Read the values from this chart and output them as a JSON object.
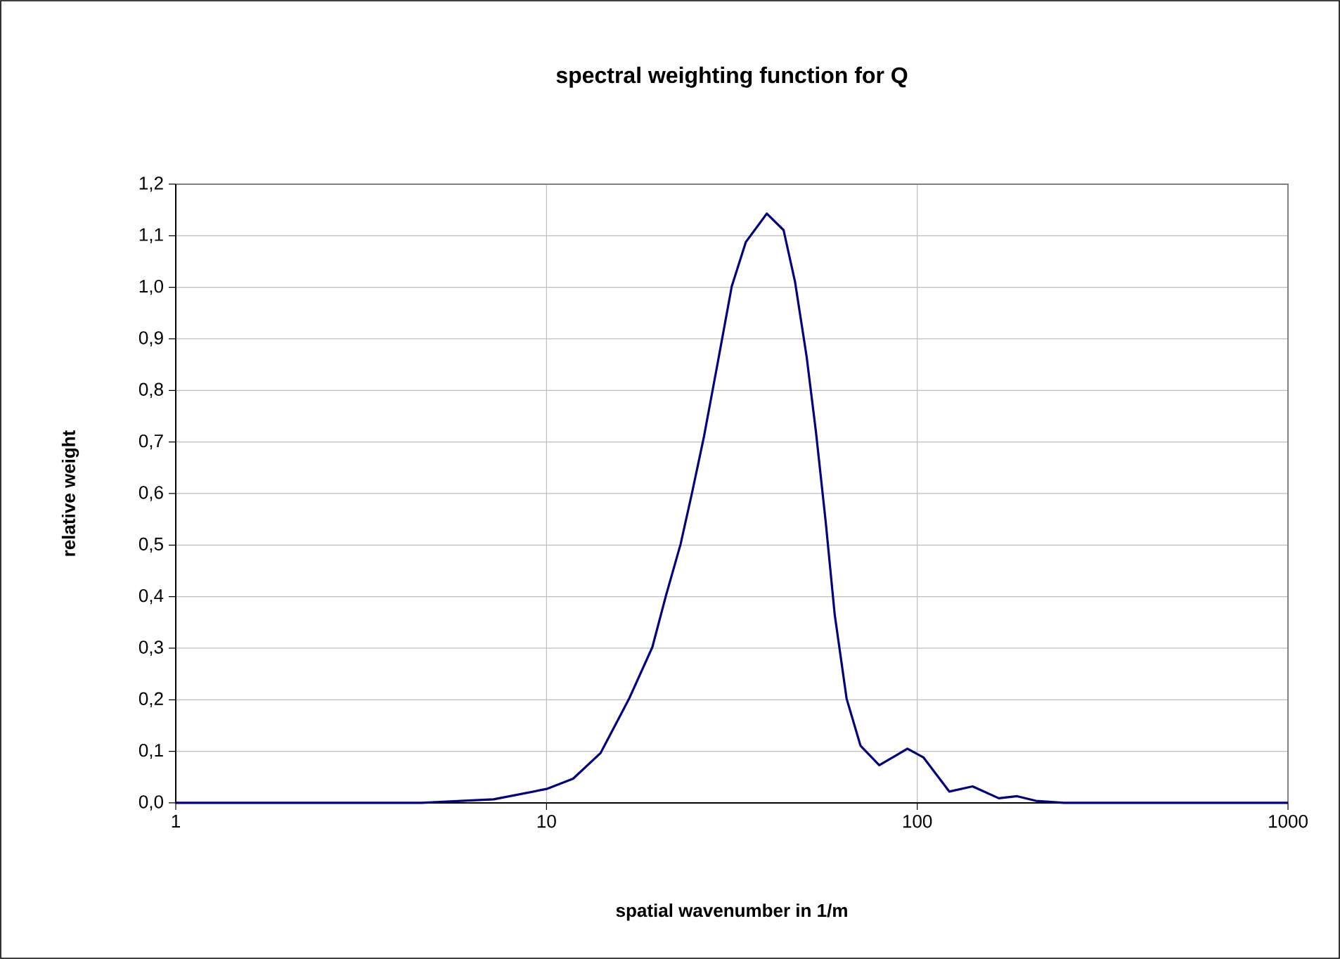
{
  "chart_data": {
    "type": "line",
    "title": "spectral weighting function for Q",
    "xlabel": "spatial wavenumber in 1/m",
    "ylabel": "relative weight",
    "log": "x",
    "grid": true,
    "marker": "none",
    "line_style": "solid",
    "xlim": [
      1,
      1000
    ],
    "xticks": [
      1,
      10,
      100,
      1000
    ],
    "ylim": [
      0,
      1.2
    ],
    "yticks": [
      {
        "value": 0,
        "label": "0,0"
      },
      {
        "value": 0.1,
        "label": "0,1"
      },
      {
        "value": 0.2,
        "label": "0,2"
      },
      {
        "value": 0.3,
        "label": "0,3"
      },
      {
        "value": 0.4,
        "label": "0,4"
      },
      {
        "value": 0.5,
        "label": "0,5"
      },
      {
        "value": 0.6,
        "label": "0,6"
      },
      {
        "value": 0.7,
        "label": "0,7"
      },
      {
        "value": 0.8,
        "label": "0,8"
      },
      {
        "value": 0.9,
        "label": "0,9"
      },
      {
        "value": 1.0,
        "label": "1,0"
      },
      {
        "value": 1.1,
        "label": "1,1"
      },
      {
        "value": 1.2,
        "label": "1,2"
      }
    ],
    "series": [
      {
        "color": "#000080",
        "x": [
          1,
          2,
          4.6,
          7.2,
          10,
          11.8,
          14,
          16.7,
          19.3,
          21,
          23,
          24.7,
          26.6,
          29,
          31.6,
          34.5,
          39.3,
          43.6,
          46.8,
          50.3,
          53.3,
          56.6,
          59.9,
          64.5,
          70.3,
          79,
          94.1,
          104,
          122,
          141,
          166,
          186,
          209,
          249,
          500,
          1000
        ],
        "values": [
          0,
          0,
          0,
          0.007,
          0.027,
          0.047,
          0.097,
          0.202,
          0.302,
          0.402,
          0.502,
          0.602,
          0.711,
          0.856,
          1.002,
          1.088,
          1.143,
          1.111,
          1.011,
          0.866,
          0.72,
          0.547,
          0.365,
          0.202,
          0.111,
          0.073,
          0.105,
          0.088,
          0.022,
          0.032,
          0.009,
          0.013,
          0.004,
          0,
          0,
          0
        ]
      }
    ]
  }
}
